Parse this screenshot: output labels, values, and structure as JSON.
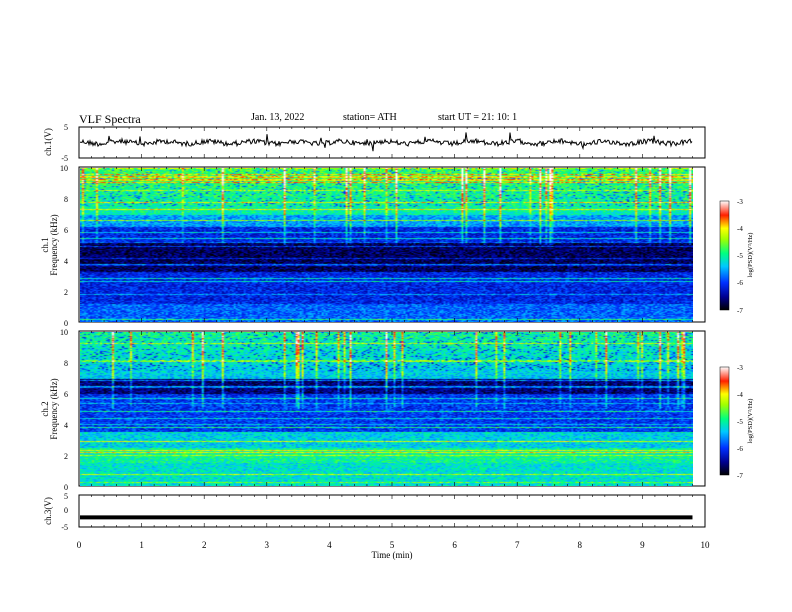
{
  "header": {
    "title": "VLF  Spectra",
    "date": "Jan.  13,  2022",
    "station": "station= ATH",
    "start": "start  UT  =    21: 10: 1"
  },
  "chart_data": [
    {
      "type": "line",
      "ylabel": "ch.1(V)",
      "ylim": [
        -5,
        5
      ],
      "yticks": [
        "5",
        "-5"
      ],
      "description_series": "waveform noise around 0 V with sparse spikes",
      "xlim": [
        0,
        10
      ]
    },
    {
      "type": "heatmap",
      "ylabel_line1": "ch.1",
      "ylabel_line2": "Frequency  (kHz)",
      "ylim": [
        0,
        10
      ],
      "yticks": [
        "0",
        "2",
        "4",
        "6",
        "8",
        "10"
      ],
      "xlim": [
        0,
        10
      ],
      "colorbar": {
        "label": "log(PSD)(V²/Hz)",
        "range": [
          -7,
          -3
        ],
        "ticks": [
          "-3",
          "-4",
          "-5",
          "-6",
          "-7"
        ]
      }
    },
    {
      "type": "heatmap",
      "ylabel_line1": "ch.2",
      "ylabel_line2": "Frequency  (kHz)",
      "ylim": [
        0,
        10
      ],
      "yticks": [
        "0",
        "2",
        "4",
        "6",
        "8",
        "10"
      ],
      "xlim": [
        0,
        10
      ],
      "colorbar": {
        "label": "log(PSD)(V²/Hz)",
        "range": [
          -7,
          -3
        ],
        "ticks": [
          "-3",
          "-4",
          "-5",
          "-6",
          "-7"
        ]
      }
    },
    {
      "type": "line",
      "ylabel": "ch.3(V)",
      "ylim": [
        -5,
        5
      ],
      "yticks": [
        "5",
        "0",
        "-5"
      ],
      "xlabel": "Time  (min)",
      "xlim": [
        0,
        10
      ],
      "xticks": [
        "0",
        "1",
        "2",
        "3",
        "4",
        "5",
        "6",
        "7",
        "8",
        "9",
        "10"
      ],
      "constant_value": -2,
      "data_end_x": 9.8
    }
  ]
}
